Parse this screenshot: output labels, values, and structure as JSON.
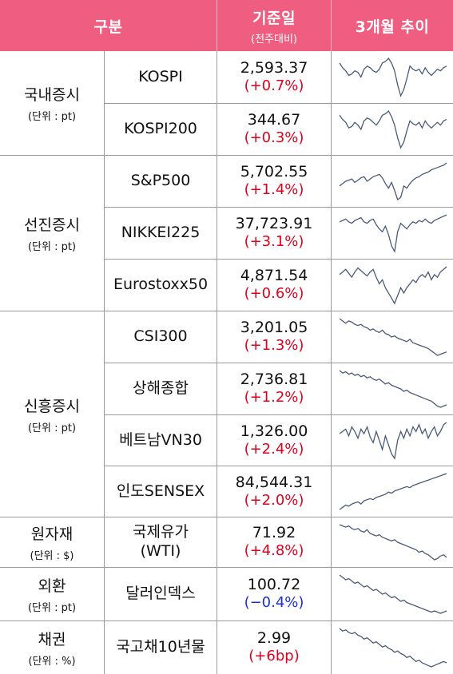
{
  "header": {
    "category": "구분",
    "base_date": "기준일",
    "base_date_sub": "(전주대비)",
    "trend": "3개월 추이"
  },
  "colors": {
    "header_bg": "#ef5d80",
    "positive": "#e0001b",
    "negative": "#1a2ed6",
    "sparkline": "#4a5a78"
  },
  "groups": [
    {
      "label": "국내증시",
      "unit": "(단위 : pt)",
      "items": [
        {
          "name": "KOSPI",
          "value": "2,593.37",
          "change": "(+0.7%)",
          "direction": "up",
          "trend": [
            58,
            61,
            63,
            66,
            65,
            63,
            64,
            67,
            62,
            60,
            61,
            63,
            64,
            62,
            58,
            57,
            55,
            58,
            63,
            72,
            79,
            75,
            68,
            60,
            62,
            63,
            62,
            65,
            61,
            64,
            66,
            64,
            62,
            63,
            61,
            60
          ]
        },
        {
          "name": "KOSPI200",
          "value": "344.67",
          "change": "(+0.3%)",
          "direction": "up",
          "trend": [
            57,
            60,
            62,
            66,
            65,
            62,
            64,
            67,
            61,
            59,
            60,
            62,
            64,
            61,
            57,
            56,
            54,
            58,
            64,
            73,
            80,
            76,
            68,
            61,
            63,
            64,
            62,
            66,
            61,
            64,
            66,
            64,
            62,
            64,
            61,
            60
          ]
        },
        {
          "name": "S&P500",
          "value": "5,702.55",
          "change": "(+1.4%)",
          "direction": "up",
          "group_break": true,
          "trend": [
            60,
            58,
            56,
            55,
            54,
            57,
            55,
            53,
            52,
            56,
            54,
            52,
            51,
            50,
            53,
            58,
            62,
            57,
            64,
            72,
            70,
            60,
            62,
            58,
            55,
            53,
            52,
            50,
            49,
            48,
            46,
            45,
            44,
            43,
            42,
            40
          ]
        },
        {
          "name": "NIKKEI225",
          "value": "37,723.91",
          "change": "(+3.1%)",
          "direction": "up",
          "trend": [
            55,
            54,
            53,
            55,
            56,
            54,
            53,
            52,
            55,
            56,
            54,
            53,
            57,
            60,
            62,
            58,
            64,
            72,
            76,
            62,
            56,
            58,
            60,
            57,
            55,
            56,
            54,
            55,
            53,
            55,
            56,
            54,
            53,
            52,
            51,
            50
          ]
        },
        {
          "name": "Eurostoxx50",
          "value": "4,871.54",
          "change": "(+0.6%)",
          "direction": "up",
          "trend": [
            48,
            46,
            44,
            47,
            50,
            46,
            43,
            45,
            47,
            49,
            46,
            44,
            50,
            55,
            52,
            58,
            62,
            66,
            70,
            64,
            58,
            62,
            58,
            55,
            52,
            54,
            50,
            48,
            50,
            46,
            52,
            48,
            50,
            46,
            44,
            42
          ]
        },
        {
          "name": "CSI300",
          "value": "3,201.05",
          "change": "(+1.3%)",
          "direction": "up",
          "group_break": true,
          "trend": [
            42,
            44,
            46,
            44,
            45,
            47,
            48,
            47,
            49,
            50,
            52,
            51,
            53,
            54,
            52,
            55,
            56,
            58,
            57,
            59,
            60,
            61,
            62,
            60,
            63,
            64,
            65,
            66,
            67,
            68,
            70,
            72,
            74,
            73,
            72,
            71
          ]
        },
        {
          "name": "상해종합",
          "value": "2,736.81",
          "change": "(+1.2%)",
          "direction": "up",
          "trend": [
            43,
            45,
            44,
            46,
            45,
            47,
            46,
            48,
            47,
            49,
            48,
            50,
            51,
            50,
            52,
            54,
            53,
            55,
            56,
            57,
            58,
            60,
            59,
            61,
            62,
            63,
            64,
            65,
            66,
            67,
            68,
            70,
            72,
            73,
            72,
            71
          ]
        },
        {
          "name": "베트남VN30",
          "value": "1,326.00",
          "change": "(+2.4%)",
          "direction": "up",
          "trend": [
            52,
            50,
            48,
            54,
            46,
            50,
            56,
            48,
            52,
            46,
            55,
            60,
            50,
            58,
            66,
            54,
            62,
            70,
            74,
            58,
            50,
            56,
            48,
            54,
            46,
            50,
            44,
            52,
            48,
            56,
            50,
            46,
            54,
            50,
            44,
            42
          ]
        },
        {
          "name": "인도SENSEX",
          "value": "84,544.31",
          "change": "(+2.0%)",
          "direction": "up",
          "trend": [
            74,
            72,
            70,
            71,
            69,
            68,
            67,
            69,
            66,
            65,
            64,
            65,
            63,
            62,
            61,
            60,
            58,
            59,
            57,
            56,
            55,
            54,
            53,
            54,
            52,
            51,
            50,
            49,
            48,
            47,
            46,
            45,
            44,
            43,
            42,
            41
          ]
        },
        {
          "name": "국제유가\n(WTI)",
          "value": "71.92",
          "change": "(+4.8%)",
          "direction": "up",
          "group_break": true,
          "trend": [
            44,
            45,
            46,
            45,
            47,
            48,
            47,
            49,
            50,
            48,
            51,
            52,
            53,
            52,
            54,
            55,
            56,
            57,
            56,
            58,
            59,
            60,
            61,
            62,
            63,
            64,
            66,
            65,
            67,
            68,
            70,
            72,
            71,
            69,
            68,
            70
          ]
        },
        {
          "name": "달러인덱스",
          "value": "100.72",
          "change": "(−0.4%)",
          "direction": "down",
          "group_break": true,
          "trend": [
            42,
            44,
            46,
            45,
            47,
            49,
            48,
            50,
            52,
            51,
            53,
            55,
            54,
            56,
            58,
            57,
            59,
            61,
            60,
            62,
            64,
            63,
            65,
            66,
            67,
            68,
            69,
            70,
            71,
            72,
            73,
            72,
            73,
            74,
            73,
            72
          ]
        },
        {
          "name": "국고채10년물",
          "value": "2.99",
          "change": "(+6bp)",
          "direction": "up",
          "group_break": true,
          "trend": [
            44,
            46,
            45,
            47,
            48,
            47,
            49,
            50,
            52,
            51,
            53,
            55,
            54,
            56,
            58,
            57,
            59,
            60,
            62,
            61,
            63,
            64,
            66,
            65,
            67,
            69,
            68,
            70,
            71,
            72,
            73,
            72,
            71,
            70,
            69,
            70
          ]
        }
      ]
    }
  ],
  "categories": [
    {
      "c1": "국내증시",
      "c2": "(단위 : pt)"
    },
    {
      "c1": "선진증시",
      "c2": "(단위 : pt)"
    },
    {
      "c1": "신흥증시",
      "c2": "(단위 : pt)"
    },
    {
      "c1": "원자재",
      "c2": "(단위 : $)"
    },
    {
      "c1": "외환",
      "c2": "(단위 : pt)"
    },
    {
      "c1": "채권",
      "c2": "(단위 : %)"
    }
  ]
}
